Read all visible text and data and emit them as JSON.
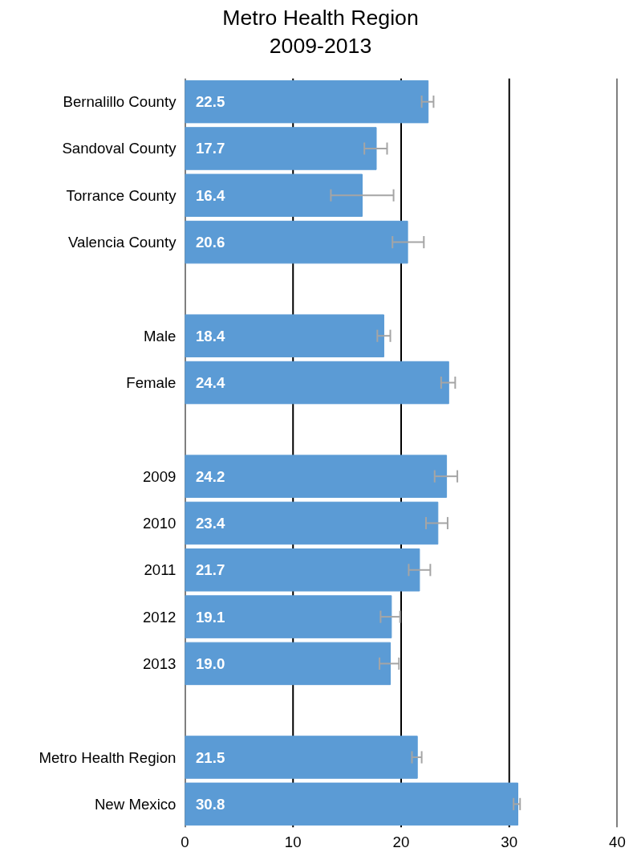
{
  "chart_data": {
    "type": "bar",
    "orientation": "horizontal",
    "title": "Metro Health Region\n2009-2013",
    "categories": [
      "Bernalillo County",
      "Sandoval County",
      "Torrance County",
      "Valencia County",
      null,
      "Male",
      "Female",
      null,
      "2009",
      "2010",
      "2011",
      "2012",
      "2013",
      null,
      "Metro Health Region",
      "New Mexico"
    ],
    "values": [
      22.5,
      17.7,
      16.4,
      20.6,
      null,
      18.4,
      24.4,
      null,
      24.2,
      23.4,
      21.7,
      19.1,
      19.0,
      null,
      21.5,
      30.8
    ],
    "value_labels": [
      "22.5",
      "17.7",
      "16.4",
      "20.6",
      null,
      "18.4",
      "24.4",
      null,
      "24.2",
      "23.4",
      "21.7",
      "19.1",
      "19.0",
      null,
      "21.5",
      "30.8"
    ],
    "errors": [
      [
        21.9,
        23.0
      ],
      [
        16.6,
        18.7
      ],
      [
        13.5,
        19.3
      ],
      [
        19.2,
        22.1
      ],
      null,
      [
        17.8,
        19.0
      ],
      [
        23.7,
        25.0
      ],
      null,
      [
        23.1,
        25.2
      ],
      [
        22.3,
        24.3
      ],
      [
        20.7,
        22.7
      ],
      [
        18.1,
        19.9
      ],
      [
        18.0,
        19.8
      ],
      null,
      [
        21.0,
        21.9
      ],
      [
        30.4,
        31.0
      ]
    ],
    "color": "#5b9bd5",
    "xlim": [
      0,
      40
    ],
    "xticks": [
      0,
      10,
      20,
      30,
      40
    ],
    "grid": "x"
  }
}
